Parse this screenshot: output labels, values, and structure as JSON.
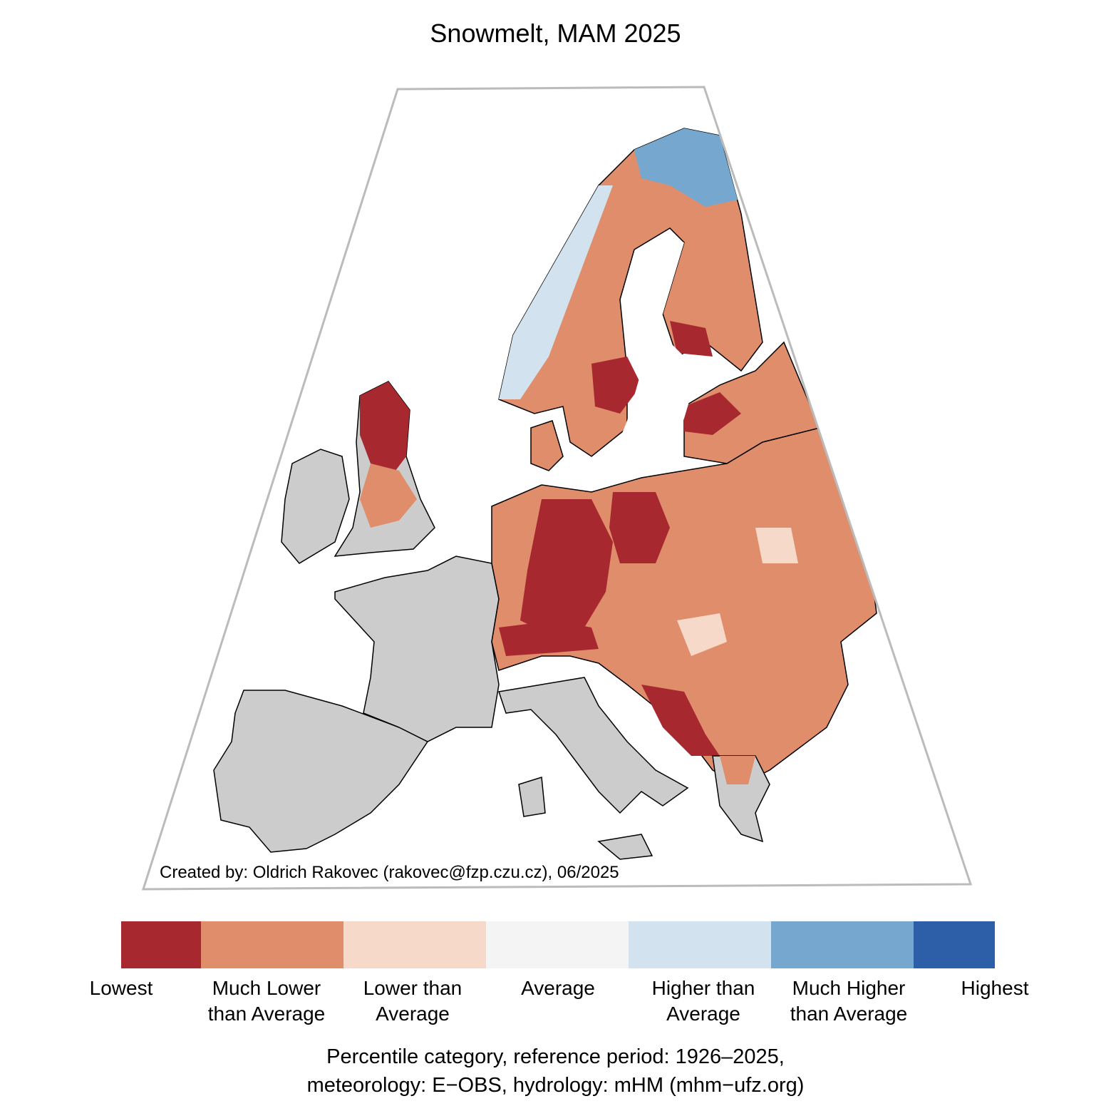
{
  "title": "Snowmelt, MAM 2025",
  "credit": "Created by: Oldrich Rakovec (rakovec@fzp.czu.cz), 06/2025",
  "legend": {
    "categories": [
      {
        "label_1": "Lowest",
        "label_2": "",
        "color": "#a8282f"
      },
      {
        "label_1": "Much Lower",
        "label_2": "than Average",
        "color": "#e08d6b"
      },
      {
        "label_1": "Lower than",
        "label_2": "Average",
        "color": "#f6d9c8"
      },
      {
        "label_1": "Average",
        "label_2": "",
        "color": "#f4f4f4"
      },
      {
        "label_1": "Higher than",
        "label_2": "Average",
        "color": "#d2e3ef"
      },
      {
        "label_1": "Much Higher",
        "label_2": "than Average",
        "color": "#76a8cf"
      },
      {
        "label_1": "Highest",
        "label_2": "",
        "color": "#2d5fa8"
      }
    ],
    "no_data_color": "#cccccc"
  },
  "caption": {
    "line1": "Percentile category, reference period: 1926–2025,",
    "line2": "meteorology: E−OBS, hydrology: mHM (mhm−ufz.org)"
  }
}
